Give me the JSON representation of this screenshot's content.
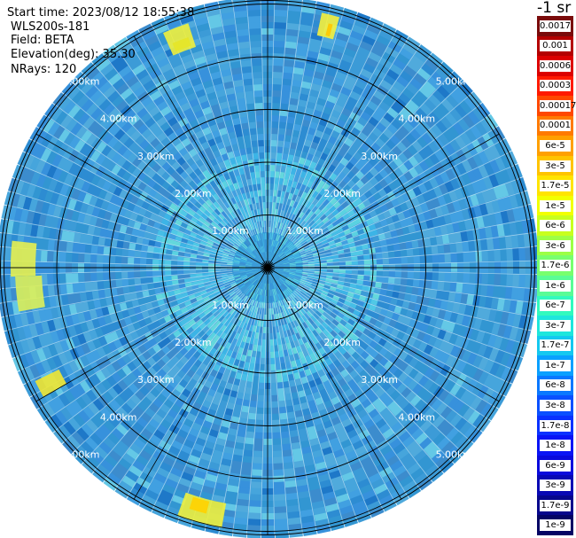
{
  "header": {
    "start_time": "Start time: 2023/08/12 18:55:38",
    "instrument": "WLS200s-181",
    "field": "Field: BETA",
    "elevation": "Elevation(deg): 35.30",
    "nrays": "NRays: 120"
  },
  "colorbar": {
    "title": "-1 sr",
    "bins": [
      {
        "label": "0.0017",
        "color": "#7a0a0a"
      },
      {
        "label": "0.001",
        "color": "#b40000"
      },
      {
        "label": "0.0006",
        "color": "#dc0000"
      },
      {
        "label": "0.0003",
        "color": "#ff1a00"
      },
      {
        "label": "0.00017",
        "color": "#ff4800"
      },
      {
        "label": "0.0001",
        "color": "#ff7a00"
      },
      {
        "label": "6e-5",
        "color": "#ffa000"
      },
      {
        "label": "3e-5",
        "color": "#ffc400"
      },
      {
        "label": "1.7e-5",
        "color": "#ffe400"
      },
      {
        "label": "1e-5",
        "color": "#f2ff00"
      },
      {
        "label": "6e-6",
        "color": "#c8ff1e"
      },
      {
        "label": "3e-6",
        "color": "#9cff46"
      },
      {
        "label": "1.7e-6",
        "color": "#78ff6e"
      },
      {
        "label": "1e-6",
        "color": "#5afc96"
      },
      {
        "label": "6e-7",
        "color": "#32fabe"
      },
      {
        "label": "3e-7",
        "color": "#1ee6dc"
      },
      {
        "label": "1.7e-7",
        "color": "#14c8f0"
      },
      {
        "label": "1e-7",
        "color": "#0aa0ff"
      },
      {
        "label": "6e-8",
        "color": "#0a78ff"
      },
      {
        "label": "3e-8",
        "color": "#0a50ff"
      },
      {
        "label": "1.7e-8",
        "color": "#0a32ff"
      },
      {
        "label": "1e-8",
        "color": "#0a14f5"
      },
      {
        "label": "6e-9",
        "color": "#0a0adc"
      },
      {
        "label": "3e-9",
        "color": "#0808b4"
      },
      {
        "label": "1.7e-9",
        "color": "#06068c"
      },
      {
        "label": "1e-9",
        "color": "#040464"
      }
    ]
  },
  "range_rings": [
    {
      "label": "1.00km"
    },
    {
      "label": "2.00km"
    },
    {
      "label": "3.00km"
    },
    {
      "label": "4.00km"
    },
    {
      "label": "5.00km"
    }
  ],
  "plot_colors": {
    "background_blue": "#3c9bd7",
    "outline": "#000000",
    "ring_label": "#ffffff"
  }
}
